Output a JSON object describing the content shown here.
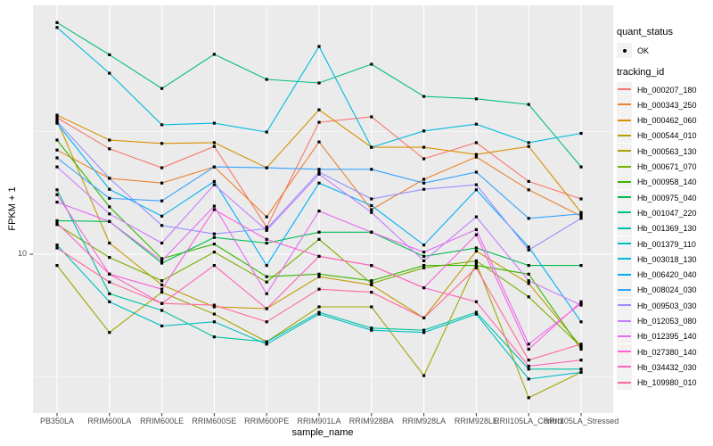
{
  "figure": {
    "background": "#FFFFFF",
    "panel_background": "#EBEBEB",
    "grid_color": "#FFFFFF",
    "axis_text_color": "#4D4D4D",
    "point_color": "#000000"
  },
  "legend": {
    "quant_status_title": "quant_status",
    "quant_status_items": [
      {
        "label": "OK",
        "marker": "point-icon",
        "color": "#000000"
      }
    ],
    "tracking_id_title": "tracking_id"
  },
  "chart_data": {
    "type": "line",
    "title": "",
    "xlabel": "sample_name",
    "ylabel": "FPKM + 1",
    "y_scale": "log10",
    "y_ticks": [
      "10"
    ],
    "y_minor_gridlines": [
      3.162,
      31.62
    ],
    "ylim": [
      2.3,
      97
    ],
    "grid": true,
    "legend_position": "right",
    "categories": [
      "PB350LA",
      "RRIM600LA",
      "RRIM600LE",
      "RRIM600SE",
      "RRIM600PE",
      "RRIM901LA",
      "RRIM928BA",
      "RRIM928LA",
      "RRIM928LE",
      "RRII105LA_Control",
      "RRII105LA_Stressed"
    ],
    "series": [
      {
        "name": "Hb_000207_180",
        "color": "#F8766D",
        "values": [
          36.0,
          26.9,
          22.5,
          27.5,
          12.9,
          34.5,
          36.3,
          24.5,
          28.5,
          19.8,
          16.8
        ]
      },
      {
        "name": "Hb_000343_250",
        "color": "#EA8331",
        "values": [
          26.6,
          20.4,
          19.5,
          22.7,
          14.2,
          28.7,
          15.2,
          20.2,
          24.9,
          18.3,
          14.3
        ]
      },
      {
        "name": "Hb_000462_060",
        "color": "#D89000",
        "values": [
          36.9,
          29.2,
          28.3,
          28.5,
          22.5,
          38.8,
          27.3,
          27.3,
          25.5,
          27.5,
          14.8
        ]
      },
      {
        "name": "Hb_000544_010",
        "color": "#C09B00",
        "values": [
          35.1,
          11.1,
          7.5,
          6.1,
          6.0,
          8.1,
          7.5,
          5.5,
          10.3,
          7.6,
          4.2
        ]
      },
      {
        "name": "Hb_000563_130",
        "color": "#A3A500",
        "values": [
          9.0,
          4.8,
          7.0,
          5.7,
          4.4,
          6.1,
          6.1,
          3.2,
          9.2,
          2.6,
          3.3
        ]
      },
      {
        "name": "Hb_000671_070",
        "color": "#7CAE00",
        "values": [
          13.2,
          9.7,
          7.8,
          10.2,
          7.7,
          11.5,
          7.6,
          8.8,
          9.4,
          6.7,
          4.2
        ]
      },
      {
        "name": "Hb_000958_140",
        "color": "#39B600",
        "values": [
          29.2,
          15.6,
          9.6,
          11.0,
          8.1,
          8.3,
          7.8,
          9.0,
          9.0,
          8.3,
          4.1
        ]
      },
      {
        "name": "Hb_000975_040",
        "color": "#00BB4E",
        "values": [
          13.7,
          13.6,
          9.2,
          11.7,
          11.1,
          12.3,
          12.3,
          9.8,
          10.6,
          9.0,
          9.0
        ]
      },
      {
        "name": "Hb_001047_220",
        "color": "#00BF7D",
        "values": [
          88.0,
          65.0,
          47.4,
          65.3,
          51.6,
          49.9,
          59.5,
          44.0,
          43.0,
          40.8,
          22.7
        ]
      },
      {
        "name": "Hb_001369_130",
        "color": "#00C1A3",
        "values": [
          18.3,
          6.9,
          5.9,
          4.6,
          4.4,
          5.8,
          5.0,
          4.9,
          5.8,
          3.4,
          3.4
        ]
      },
      {
        "name": "Hb_001379_110",
        "color": "#00BFC4",
        "values": [
          10.9,
          6.4,
          5.1,
          5.3,
          4.3,
          5.7,
          4.9,
          4.8,
          5.7,
          3.1,
          3.3
        ]
      },
      {
        "name": "Hb_003018_130",
        "color": "#00BAE0",
        "values": [
          84.0,
          54.7,
          33.7,
          34.2,
          31.5,
          70.3,
          27.3,
          31.8,
          33.9,
          28.5,
          31.1
        ]
      },
      {
        "name": "Hb_006420_040",
        "color": "#00B0F6",
        "values": [
          34.2,
          18.4,
          14.3,
          19.8,
          9.0,
          19.5,
          15.8,
          10.9,
          18.3,
          10.7,
          5.3
        ]
      },
      {
        "name": "Hb_008024_030",
        "color": "#35A2FF",
        "values": [
          24.7,
          16.9,
          16.5,
          22.7,
          22.5,
          22.2,
          22.2,
          19.5,
          21.6,
          14.0,
          14.6
        ]
      },
      {
        "name": "Hb_009503_030",
        "color": "#9590FF",
        "values": [
          34.8,
          20.4,
          13.1,
          12.1,
          12.7,
          21.6,
          16.8,
          18.4,
          19.2,
          10.4,
          14.0
        ]
      },
      {
        "name": "Hb_012053_080",
        "color": "#C77CFF",
        "values": [
          22.7,
          14.6,
          11.1,
          19.2,
          12.5,
          21.2,
          14.8,
          9.4,
          14.2,
          7.8,
          6.2
        ]
      },
      {
        "name": "Hb_012395_140",
        "color": "#E76BF3",
        "values": [
          16.3,
          13.6,
          9.4,
          15.7,
          6.9,
          15.0,
          12.3,
          10.2,
          12.6,
          4.3,
          6.3
        ]
      },
      {
        "name": "Hb_027380_140",
        "color": "#FA62DB",
        "values": [
          17.5,
          8.3,
          7.2,
          15.2,
          11.5,
          9.8,
          9.0,
          7.3,
          12.0,
          4.1,
          6.4
        ]
      },
      {
        "name": "Hb_034432_030",
        "color": "#FF62BC",
        "values": [
          13.4,
          8.3,
          6.3,
          9.0,
          6.0,
          9.8,
          9.0,
          7.3,
          6.4,
          3.5,
          3.7
        ]
      },
      {
        "name": "Hb_109980_010",
        "color": "#FF6A98",
        "values": [
          10.6,
          7.7,
          6.3,
          6.2,
          5.3,
          7.2,
          7.0,
          5.5,
          8.8,
          3.7,
          4.3
        ]
      }
    ]
  }
}
